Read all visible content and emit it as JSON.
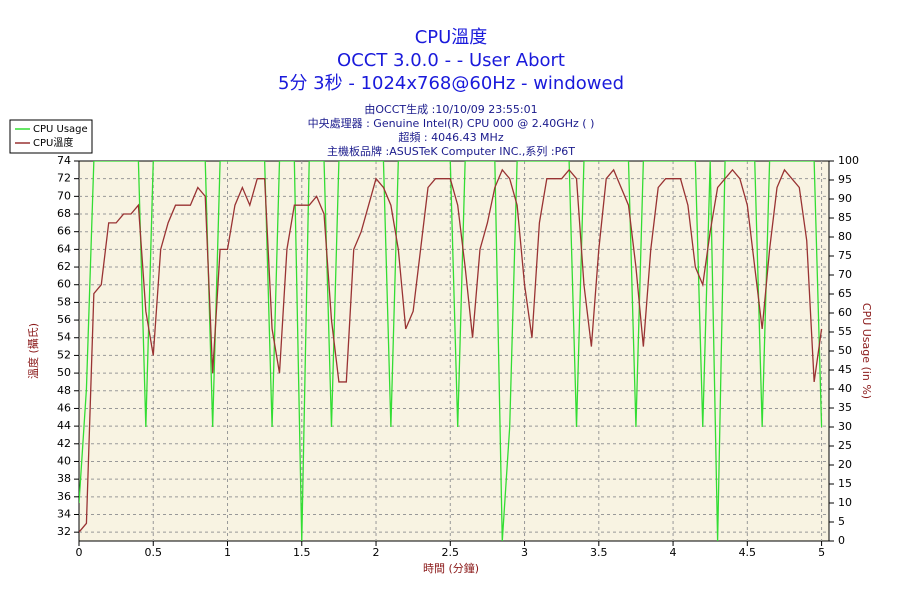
{
  "chart_data": {
    "type": "line",
    "title": [
      "CPU溫度",
      "OCCT 3.0.0 -  - User Abort",
      "5分 3秒 - 1024x768@60Hz - windowed"
    ],
    "subtitle": [
      "由OCCT生成 :10/10/09 23:55:01",
      "中央處理器 : Genuine Intel(R) CPU 000 @ 2.40GHz ( )",
      "超頻 : 4046.43 MHz",
      "主機板品牌 :ASUSTeK Computer INC.,系列 :P6T"
    ],
    "xlabel": "時間 (分鐘)",
    "ylabel": "溫度 (攝氏)",
    "y2label": "CPU Usage (in %)",
    "x": [
      0,
      0.05,
      0.1,
      0.15,
      0.2,
      0.25,
      0.3,
      0.35,
      0.4,
      0.45,
      0.5,
      0.55,
      0.6,
      0.65,
      0.7,
      0.75,
      0.8,
      0.85,
      0.9,
      0.95,
      1,
      1.05,
      1.1,
      1.15,
      1.2,
      1.25,
      1.3,
      1.35,
      1.4,
      1.45,
      1.5,
      1.55,
      1.6,
      1.65,
      1.7,
      1.75,
      1.8,
      1.85,
      1.9,
      1.95,
      2,
      2.05,
      2.1,
      2.15,
      2.2,
      2.25,
      2.3,
      2.35,
      2.4,
      2.45,
      2.5,
      2.55,
      2.6,
      2.65,
      2.7,
      2.75,
      2.8,
      2.85,
      2.9,
      2.95,
      3,
      3.05,
      3.1,
      3.15,
      3.2,
      3.25,
      3.3,
      3.35,
      3.4,
      3.45,
      3.5,
      3.55,
      3.6,
      3.65,
      3.7,
      3.75,
      3.8,
      3.85,
      3.9,
      3.95,
      4,
      4.05,
      4.1,
      4.15,
      4.2,
      4.25,
      4.3,
      4.35,
      4.4,
      4.45,
      4.5,
      4.55,
      4.6,
      4.65,
      4.7,
      4.75,
      4.8,
      4.85,
      4.9,
      4.95,
      5
    ],
    "series": [
      {
        "name": "CPU Usage",
        "color": "#33dd33",
        "axis": "y2",
        "values": [
          10,
          40,
          100,
          100,
          100,
          100,
          100,
          100,
          100,
          30,
          100,
          100,
          100,
          100,
          100,
          100,
          100,
          100,
          30,
          100,
          100,
          100,
          100,
          100,
          100,
          100,
          30,
          100,
          100,
          100,
          0,
          100,
          100,
          100,
          30,
          100,
          100,
          100,
          100,
          100,
          100,
          100,
          30,
          100,
          100,
          100,
          100,
          100,
          100,
          100,
          100,
          30,
          100,
          100,
          100,
          100,
          100,
          0,
          30,
          100,
          100,
          100,
          100,
          100,
          100,
          100,
          100,
          30,
          100,
          100,
          100,
          100,
          100,
          100,
          100,
          30,
          100,
          100,
          100,
          100,
          100,
          100,
          100,
          100,
          30,
          100,
          0,
          100,
          100,
          100,
          100,
          100,
          30,
          100,
          100,
          100,
          100,
          100,
          100,
          100,
          30
        ]
      },
      {
        "name": "CPU溫度",
        "color": "#993333",
        "values": [
          32,
          33,
          59,
          60,
          67,
          67,
          68,
          68,
          69,
          57,
          52,
          64,
          67,
          69,
          69,
          69,
          71,
          70,
          50,
          64,
          64,
          69,
          71,
          69,
          72,
          72,
          55,
          50,
          64,
          69,
          69,
          69,
          70,
          68,
          56,
          49,
          49,
          64,
          66,
          69,
          72,
          71,
          69,
          64,
          55,
          57,
          64,
          71,
          72,
          72,
          72,
          69,
          62,
          54,
          64,
          67,
          71,
          73,
          72,
          69,
          60,
          54,
          67,
          72,
          72,
          72,
          73,
          72,
          60,
          53,
          64,
          72,
          73,
          71,
          69,
          62,
          53,
          64,
          71,
          72,
          72,
          72,
          69,
          62,
          60,
          66,
          71,
          72,
          73,
          72,
          69,
          62,
          55,
          64,
          71,
          73,
          72,
          71,
          65,
          49,
          55
        ]
      }
    ],
    "xlim": [
      0,
      5.05
    ],
    "xticks": [
      0,
      0.5,
      1,
      1.5,
      2,
      2.5,
      3,
      3.5,
      4,
      4.5,
      5
    ],
    "ylim": [
      31,
      74
    ],
    "yticks": [
      32,
      34,
      36,
      38,
      40,
      42,
      44,
      46,
      48,
      50,
      52,
      54,
      56,
      58,
      60,
      62,
      64,
      66,
      68,
      70,
      72,
      74
    ],
    "y2lim": [
      0,
      100
    ],
    "y2ticks": [
      0,
      5,
      10,
      15,
      20,
      25,
      30,
      35,
      40,
      45,
      50,
      55,
      60,
      65,
      70,
      75,
      80,
      85,
      90,
      95,
      100
    ],
    "grid": true,
    "legend": "upper left"
  }
}
